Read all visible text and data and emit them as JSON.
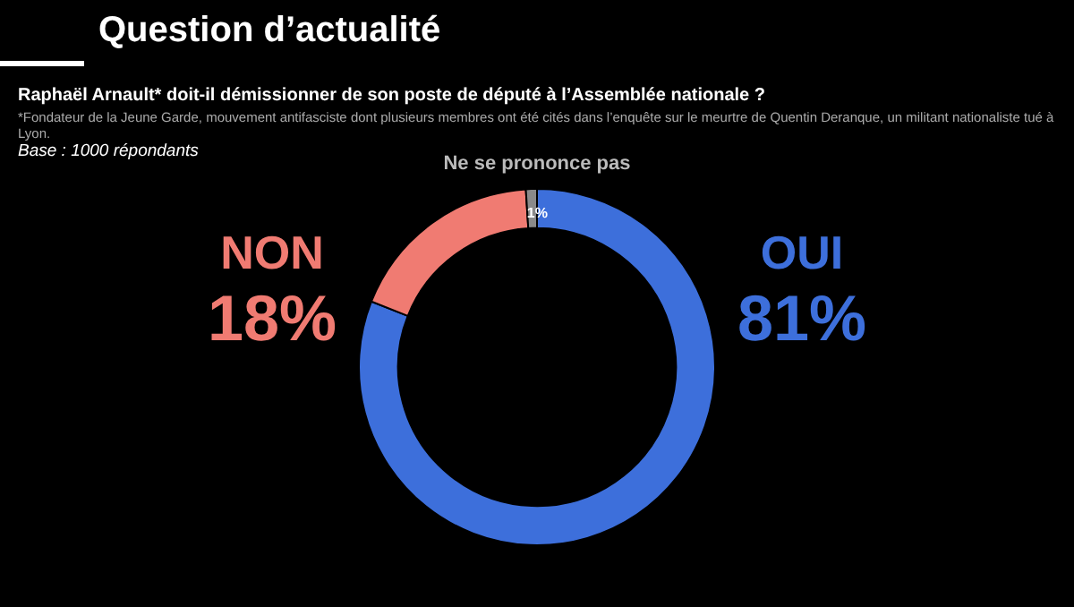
{
  "chart_data": {
    "type": "donut",
    "title": "Question d’actualité",
    "subtitle": "Raphaël Arnault* doit-il démissionner de son poste de député à l’Assemblée nationale ?",
    "annotations": [
      "*Fondateur de la Jeune Garde, mouvement antifasciste dont plusieurs membres ont été cités dans l’enquête sur le meurtre de Quentin Deranque, un militant nationaliste tué à Lyon.",
      "Base : 1000 répondants"
    ],
    "categories": [
      "OUI",
      "NON",
      "Ne se prononce pas"
    ],
    "values": [
      81,
      18,
      1
    ],
    "colors": [
      "#3d6fdb",
      "#f07b72",
      "#8a8a8a"
    ],
    "value_labels": [
      "81%",
      "18%",
      "1%"
    ],
    "legend": false
  }
}
